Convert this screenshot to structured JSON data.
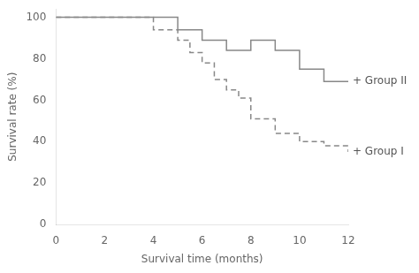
{
  "chart_data": {
    "type": "step",
    "xlabel": "Survival time (months)",
    "ylabel": "Survival rate (%)",
    "xlim": [
      0,
      12
    ],
    "ylim": [
      0,
      104
    ],
    "xticks": [
      0,
      2,
      4,
      6,
      8,
      10,
      12
    ],
    "yticks": [
      0,
      20,
      40,
      60,
      80,
      100
    ],
    "grid": false,
    "series": [
      {
        "color": "#888888",
        "line_style": "solid",
        "x": [
          0,
          5,
          5,
          6,
          6,
          7,
          7,
          8,
          8,
          9,
          9,
          10,
          10,
          11,
          11,
          12
        ],
        "values": [
          100,
          100,
          94,
          94,
          89,
          89,
          84,
          84,
          89,
          89,
          84,
          84,
          75,
          75,
          69,
          69
        ]
      },
      {
        "color": "#888888",
        "line_style": "dashed",
        "x": [
          0,
          4,
          4,
          5,
          5,
          5.5,
          5.5,
          6,
          6,
          6.5,
          6.5,
          7,
          7,
          7.5,
          7.5,
          8,
          8,
          9,
          9,
          10,
          10,
          11,
          11,
          12
        ],
        "values": [
          100,
          100,
          94,
          94,
          89,
          89,
          83,
          83,
          78,
          78,
          70,
          70,
          65,
          65,
          61,
          61,
          51,
          51,
          44,
          44,
          40,
          40,
          38,
          35
        ]
      }
    ],
    "annotations": [
      {
        "text": "+ Group II",
        "x": 12,
        "y": 69
      },
      {
        "text": "+ Group I",
        "x": 12,
        "y": 35
      }
    ]
  }
}
